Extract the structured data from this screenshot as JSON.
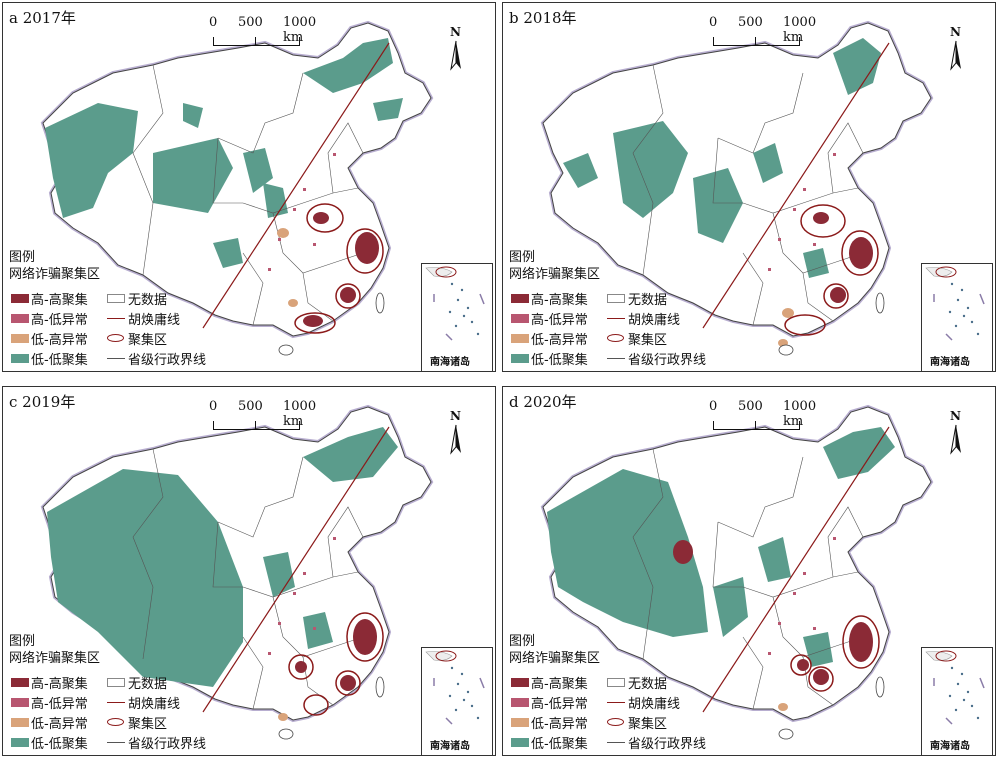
{
  "panels": [
    {
      "title": "a 2017年"
    },
    {
      "title": "b 2018年"
    },
    {
      "title": "c 2019年"
    },
    {
      "title": "d 2020年"
    }
  ],
  "scale": {
    "t0": "0",
    "t1": "500",
    "t2": "1000 km"
  },
  "north_label": "N",
  "inset_label": "南海诸岛",
  "legend": {
    "title": "图例",
    "subtitle": "网络诈骗聚集区",
    "high_high": "高-高聚集",
    "high_low": "高-低异常",
    "low_high": "低-高异常",
    "low_low": "低-低聚集",
    "no_data": "无数据",
    "hu_line": "胡焕庸线",
    "cluster_area": "聚集区",
    "prov_boundary": "省级行政界线"
  },
  "colors": {
    "high_high": "#8b2a36",
    "high_low": "#b85670",
    "low_high": "#d9a37a",
    "low_low": "#5b9c8c",
    "no_data": "#ffffff",
    "hu_line": "#8b1a1a",
    "cluster_ring": "#8b1a1a",
    "boundary": "#555555",
    "coast": "#b8aed0"
  }
}
